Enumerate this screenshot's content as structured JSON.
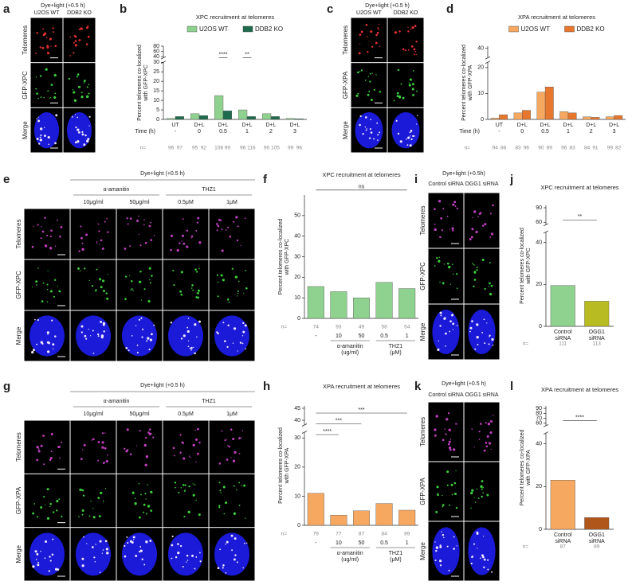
{
  "image_panels": [
    {
      "letter": "a",
      "header": "Dye+light (+0.5 h)",
      "columns": [
        "U2OS WT",
        "DDB2 KO"
      ],
      "rows": [
        "Telomeres",
        "GFP-XPC",
        "Merge"
      ]
    },
    {
      "letter": "c",
      "header": "Dye+light (+0.5 h)",
      "columns": [
        "U2OS WT",
        "DDB2 KO"
      ],
      "rows": [
        "Telomeres",
        "GFP-XPA",
        "Merge"
      ]
    },
    {
      "letter": "e",
      "header": "Dye+light (+0.5 h)",
      "groups": [
        "α-amanitin",
        "THZ1"
      ],
      "columns": [
        "",
        "10μg/ml",
        "50μg/ml",
        "0.5μM",
        "1μM"
      ],
      "rows": [
        "Telomeres",
        "GFP-XPC",
        "Merge"
      ]
    },
    {
      "letter": "i",
      "header": "Dye+light (+0.5h)",
      "columns": [
        "Control siRNA",
        "OGG1 siRNA"
      ],
      "rows": [
        "Telomeres",
        "GFP-XPC",
        "Merge"
      ]
    },
    {
      "letter": "g",
      "header": "Dye+light (+0.5 h)",
      "groups": [
        "α-amanitin",
        "THZ1"
      ],
      "columns": [
        "",
        "10μg/ml",
        "50μg/ml",
        "0.5μM",
        "1μM"
      ],
      "rows": [
        "Telomeres",
        "GFP-XPA",
        "Merge"
      ]
    },
    {
      "letter": "k",
      "header": "Dye+light (+0.5 h)",
      "columns": [
        "Control siRNA",
        "OGG1 siRNA"
      ],
      "rows": [
        "Telomeres",
        "GFP-XPA",
        "Merge"
      ]
    }
  ],
  "chart_data": [
    {
      "type": "bar",
      "panel": "b",
      "title": "XPC recruitment at telomeres",
      "y_label": [
        "Percent telomeres co-localized",
        "with GFP-XPC"
      ],
      "categories": [
        "UT",
        "D+L",
        "D+L",
        "D+L",
        "D+L",
        "D+L"
      ],
      "x_sublabel_title": "Time (h)",
      "x_sublabels": [
        "-",
        "0",
        "0.5",
        "1",
        "2",
        "3"
      ],
      "n_label": "n=",
      "series": [
        {
          "name": "U2OS WT",
          "color": "#8fd18f",
          "values": [
            0.5,
            3,
            12.5,
            5,
            3,
            0.5
          ],
          "n": [
            96,
            95,
            108,
            96,
            90,
            99
          ]
        },
        {
          "name": "DDB2 KO",
          "color": "#1e6b4e",
          "values": [
            1.5,
            2,
            4.5,
            1.5,
            1.5,
            0.3
          ],
          "n": [
            97,
            92,
            99,
            116,
            105,
            96
          ]
        }
      ],
      "ylim": [
        0,
        30
      ],
      "yticks": [
        0,
        5,
        10,
        15,
        20,
        25,
        30
      ],
      "y_upper": {
        "ylim": [
          35,
          80
        ],
        "yticks": [
          40,
          60,
          80
        ]
      },
      "annotations": [
        "****",
        "**"
      ]
    },
    {
      "type": "bar",
      "panel": "d",
      "title": "XPA recruitment at telomeres",
      "y_label": [
        "Percent telomeres co-localized",
        "with GFP-XPA"
      ],
      "categories": [
        "UT",
        "D+L",
        "D+L",
        "D+L",
        "D+L",
        "D+L"
      ],
      "x_sublabel_title": "Time (h)",
      "x_sublabels": [
        "-",
        "0",
        "0.5",
        "1",
        "2",
        "3"
      ],
      "n_label": "n=",
      "series": [
        {
          "name": "U2OS WT",
          "color": "#f6a860",
          "values": [
            0.5,
            2.5,
            10.5,
            3,
            1,
            1
          ],
          "n": [
            94,
            83,
            90,
            96,
            84,
            99
          ]
        },
        {
          "name": "DDB2 KO",
          "color": "#e8772e",
          "values": [
            1.8,
            3.5,
            12.5,
            2.5,
            0.8,
            1.5
          ],
          "n": [
            88,
            96,
            89,
            83,
            91,
            82
          ]
        }
      ],
      "ylim": [
        0,
        22
      ],
      "yticks": [
        0,
        10,
        20
      ],
      "y_upper": {
        "ylim": [
          30,
          42
        ],
        "yticks": [
          40
        ]
      },
      "annotations": []
    },
    {
      "type": "bar",
      "panel": "f",
      "title": "XPC recruitment at telomeres",
      "y_label": [
        "Percent telomeres co-localized",
        "with GFP-XPC"
      ],
      "categories": [
        "-",
        "10",
        "50",
        "0.5",
        "1"
      ],
      "x_groups": [
        [
          "α-amanitin",
          "(ug/ml)"
        ],
        [
          "THZ1",
          "(μM)"
        ]
      ],
      "n_label": "n=",
      "series": [
        {
          "color": "#8fd18f",
          "values": [
            15.5,
            13,
            10,
            17.5,
            14.5
          ],
          "n": [
            74,
            93,
            49,
            58,
            54
          ]
        }
      ],
      "ylim": [
        0,
        60
      ],
      "yticks": [
        0,
        10,
        20,
        30,
        40,
        50
      ],
      "annotations": [
        "ns"
      ]
    },
    {
      "type": "bar",
      "panel": "j",
      "title": "XPC recruitment at telomeres",
      "y_label": [
        "Percent telomeres co-localized",
        "with GFP-XPC"
      ],
      "categories": [
        [
          "Control",
          "siRNA"
        ],
        [
          "OGG1",
          "siRNA"
        ]
      ],
      "n_label": "n=",
      "series": [
        {
          "colors": [
            "#8fd18f",
            "#b9bb22"
          ],
          "values": [
            19.5,
            12
          ],
          "n": [
            111,
            113
          ]
        }
      ],
      "ylim": [
        0,
        45
      ],
      "yticks": [
        0,
        20,
        40
      ],
      "y_upper": {
        "ylim": [
          55,
          95
        ],
        "yticks": [
          60,
          90
        ]
      },
      "annotations": [
        "**"
      ]
    },
    {
      "type": "bar",
      "panel": "h",
      "title": "XPA recruitment at telomeres",
      "y_label": [
        "Percent telomeres co-localized",
        "with GFP-XPA"
      ],
      "categories": [
        "-",
        "10",
        "50",
        "0.5",
        "1"
      ],
      "x_groups": [
        [
          "α-amanitin",
          "(ug/ml)"
        ],
        [
          "THZ1",
          "(μM)"
        ]
      ],
      "n_label": "n=",
      "series": [
        {
          "color": "#f6a860",
          "values": [
            11,
            3.5,
            5,
            7.5,
            5.2
          ],
          "n": [
            79,
            77,
            87,
            84,
            89
          ]
        }
      ],
      "ylim": [
        0,
        32
      ],
      "yticks": [
        0,
        10,
        20,
        30
      ],
      "y_upper": {
        "ylim": [
          38,
          46
        ],
        "yticks": [
          40,
          45
        ]
      },
      "annotations": [
        "****",
        "***",
        "***"
      ]
    },
    {
      "type": "bar",
      "panel": "l",
      "title": "XPA recruitment at telomeres",
      "y_label": [
        "Percent telomeres co-localized",
        "with GFP-XPA"
      ],
      "categories": [
        [
          "Control",
          "siRNA"
        ],
        [
          "OGG1",
          "siRNA"
        ]
      ],
      "n_label": "n=",
      "series": [
        {
          "colors": [
            "#f6a860",
            "#b0561b"
          ],
          "values": [
            23,
            5.5
          ],
          "n": [
            87,
            89
          ]
        }
      ],
      "ylim": [
        0,
        45
      ],
      "yticks": [
        0,
        20,
        40
      ],
      "y_upper": {
        "ylim": [
          55,
          95
        ],
        "yticks": [
          60,
          70,
          80,
          90
        ]
      },
      "annotations": [
        "****"
      ]
    }
  ]
}
